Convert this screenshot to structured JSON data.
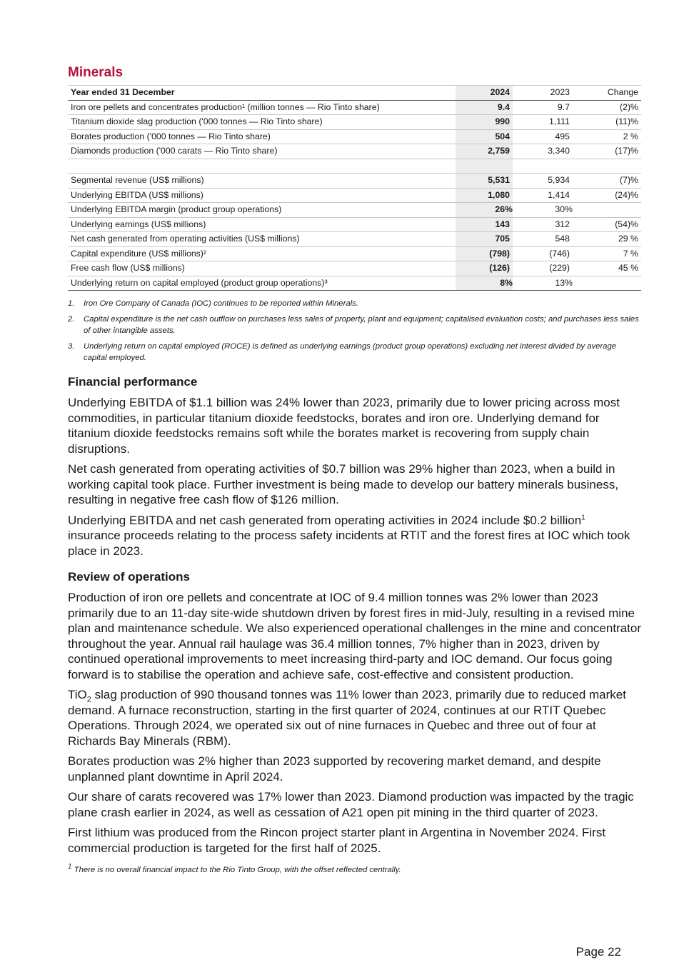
{
  "section_title": "Minerals",
  "accent_color": "#b5123f",
  "table": {
    "headers": [
      "Year ended 31 December",
      "2024",
      "2023",
      "Change"
    ],
    "rows": [
      {
        "label": "Iron ore pellets and concentrates production¹ (million tonnes — Rio Tinto share)",
        "y2024": "9.4",
        "y2023": "9.7",
        "change": "(2)%"
      },
      {
        "label": "Titanium dioxide slag production ('000 tonnes — Rio Tinto share)",
        "y2024": "990",
        "y2023": "1,111",
        "change": "(11)%"
      },
      {
        "label": "Borates production ('000 tonnes — Rio Tinto share)",
        "y2024": "504",
        "y2023": "495",
        "change": "2 %"
      },
      {
        "label": "Diamonds production ('000 carats — Rio Tinto share)",
        "y2024": "2,759",
        "y2023": "3,340",
        "change": "(17)%"
      },
      {
        "label": "Segmental revenue (US$ millions)",
        "y2024": "5,531",
        "y2023": "5,934",
        "change": "(7)%"
      },
      {
        "label": "Underlying EBITDA (US$ millions)",
        "y2024": "1,080",
        "y2023": "1,414",
        "change": "(24)%"
      },
      {
        "label": "Underlying EBITDA margin (product group operations)",
        "y2024": "26%",
        "y2023": "30%",
        "change": ""
      },
      {
        "label": "Underlying earnings (US$ millions)",
        "y2024": "143",
        "y2023": "312",
        "change": "(54)%"
      },
      {
        "label": "Net cash generated from operating activities (US$ millions)",
        "y2024": "705",
        "y2023": "548",
        "change": "29 %"
      },
      {
        "label": "Capital expenditure (US$ millions)²",
        "y2024": "(798)",
        "y2023": "(746)",
        "change": "7 %"
      },
      {
        "label": "Free cash flow (US$ millions)",
        "y2024": "(126)",
        "y2023": "(229)",
        "change": "45 %"
      },
      {
        "label": "Underlying return on capital employed (product group operations)³",
        "y2024": "8%",
        "y2023": "13%",
        "change": ""
      }
    ]
  },
  "notes": [
    {
      "num": "1.",
      "text": "Iron Ore Company of Canada (IOC) continues to be reported within Minerals."
    },
    {
      "num": "2.",
      "text": "Capital expenditure is the net cash outflow on purchases less sales of property, plant and equipment; capitalised evaluation costs; and purchases less sales of other intangible assets."
    },
    {
      "num": "3.",
      "text": "Underlying return on capital employed (ROCE) is defined as underlying earnings (product group operations) excluding net interest divided by average capital employed."
    }
  ],
  "financial": {
    "heading": "Financial performance",
    "p1": "Underlying EBITDA of $1.1 billion was 24% lower than 2023, primarily due to lower pricing across most commodities, in particular titanium dioxide feedstocks, borates and iron ore. Underlying demand for titanium dioxide feedstocks remains soft while the borates market is recovering from supply chain disruptions.",
    "p2": "Net cash generated from operating activities of $0.7 billion was 29% higher than 2023, when a build in working capital took place. Further investment is being made to develop our battery minerals business, resulting in negative free cash flow of $126 million.",
    "p3a": "Underlying EBITDA and net cash generated from operating activities in 2024 include $0.2 billion",
    "p3sup": "1",
    "p3b": " insurance proceeds relating to the process safety incidents at RTIT and the forest fires at IOC which took place in 2023."
  },
  "review": {
    "heading": "Review of operations",
    "p1": "Production of iron ore pellets and concentrate at IOC of 9.4 million tonnes was 2% lower than 2023 primarily due to an 11-day site-wide shutdown driven by forest fires in mid-July, resulting in a revised mine plan and maintenance schedule. We also experienced operational challenges in the mine and concentrator throughout the year. Annual rail haulage was 36.4 million tonnes, 7% higher than in 2023, driven by continued operational improvements to meet increasing third-party and IOC demand.  Our focus going forward is to stabilise the operation and achieve safe, cost-effective and consistent production.",
    "p2a": "TiO",
    "p2sub": "2",
    "p2b": " slag production of 990 thousand tonnes was 11% lower than 2023, primarily due to reduced market demand. A furnace reconstruction, starting in the first quarter of 2024, continues at our RTIT Quebec Operations. Through 2024, we operated six out of nine furnaces in Quebec and three out of four at Richards Bay Minerals (RBM).",
    "p3": "Borates production was 2% higher than 2023 supported by recovering market demand, and despite unplanned plant downtime in April 2024.",
    "p4": "Our share of carats recovered was 17% lower than 2023. Diamond production was impacted by the tragic plane crash earlier in 2024, as well as cessation of A21 open pit mining in the third quarter of 2023.",
    "p5": "First lithium was produced from the Rincon project starter plant in Argentina in November 2024. First commercial production is targeted for the first half of 2025."
  },
  "footnote": {
    "sup": "1",
    "text": " There is no overall financial impact to the Rio Tinto Group, with the offset reflected centrally."
  },
  "page_label": "Page 22"
}
